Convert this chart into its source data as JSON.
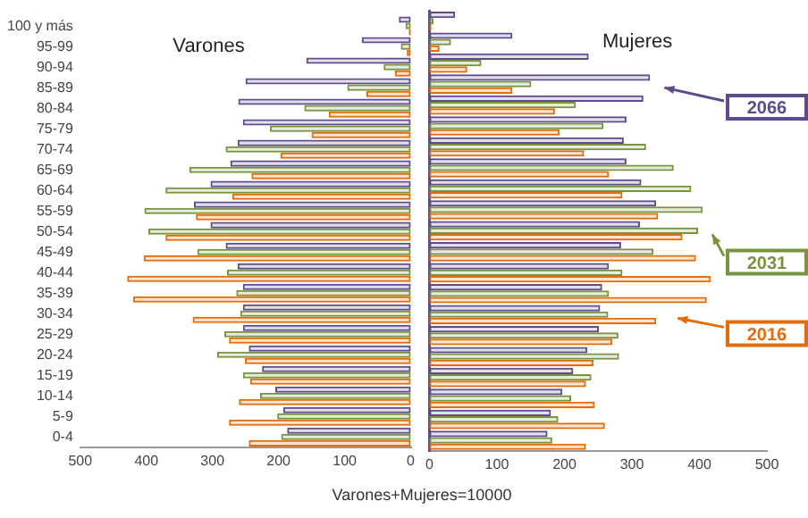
{
  "chart_data": [
    {
      "type": "bar",
      "orientation": "horizontal",
      "xlabel": "Varones+Mujeres=10000",
      "annotations": [
        "Varones"
      ],
      "categories": [
        "100 y más",
        "95-99",
        "90-94",
        "85-89",
        "80-84",
        "75-79",
        "70-74",
        "65-69",
        "60-64",
        "55-59",
        "50-54",
        "45-49",
        "40-44",
        "35-39",
        "30-34",
        "25-29",
        "20-24",
        "15-19",
        "10-14",
        "5-9",
        "0-4"
      ],
      "series": [
        {
          "color": "#e46c0a",
          "values": [
            3,
            6,
            24,
            67,
            124,
            150,
            197,
            241,
            270,
            325,
            371,
            404,
            429,
            420,
            330,
            275,
            251,
            243,
            260,
            275,
            245
          ]
        },
        {
          "color": "#77933c",
          "values": [
            8,
            15,
            41,
            96,
            161,
            213,
            280,
            335,
            371,
            403,
            397,
            323,
            278,
            264,
            258,
            282,
            293,
            254,
            228,
            202,
            196
          ]
        },
        {
          "color": "#5f4b8b",
          "values": [
            18,
            74,
            158,
            250,
            261,
            254,
            262,
            273,
            303,
            328,
            303,
            280,
            262,
            254,
            254,
            254,
            245,
            225,
            205,
            193,
            187
          ]
        }
      ],
      "xlim": [
        500,
        0
      ],
      "xticks": [
        500,
        400,
        300,
        200,
        100,
        0
      ],
      "grid": false
    },
    {
      "type": "bar",
      "orientation": "horizontal",
      "annotations": [
        "Mujeres"
      ],
      "tick_labels": "x",
      "categories": [
        null,
        null,
        null,
        null,
        null,
        null,
        null,
        null,
        null,
        null,
        null,
        null,
        null,
        null,
        null,
        null,
        null,
        null,
        null,
        null,
        null
      ],
      "series": [
        {
          "name": "2016",
          "color": "#e46c0a",
          "values": [
            3,
            15,
            56,
            123,
            186,
            193,
            229,
            266,
            286,
            339,
            375,
            395,
            417,
            411,
            336,
            271,
            243,
            232,
            245,
            260,
            232
          ]
        },
        {
          "name": "2031",
          "color": "#77933c",
          "values": [
            6,
            32,
            77,
            151,
            217,
            258,
            321,
            362,
            388,
            405,
            398,
            332,
            286,
            266,
            265,
            280,
            281,
            240,
            210,
            191,
            182
          ]
        },
        {
          "name": "2066",
          "color": "#5f4b8b",
          "values": [
            38,
            123,
            236,
            327,
            317,
            292,
            288,
            292,
            314,
            336,
            312,
            284,
            266,
            256,
            253,
            251,
            234,
            213,
            197,
            180,
            175
          ]
        }
      ],
      "xlim": [
        0,
        500
      ],
      "xticks": [
        0,
        100,
        200,
        300,
        400,
        500
      ],
      "grid": false,
      "legend": "right"
    }
  ]
}
